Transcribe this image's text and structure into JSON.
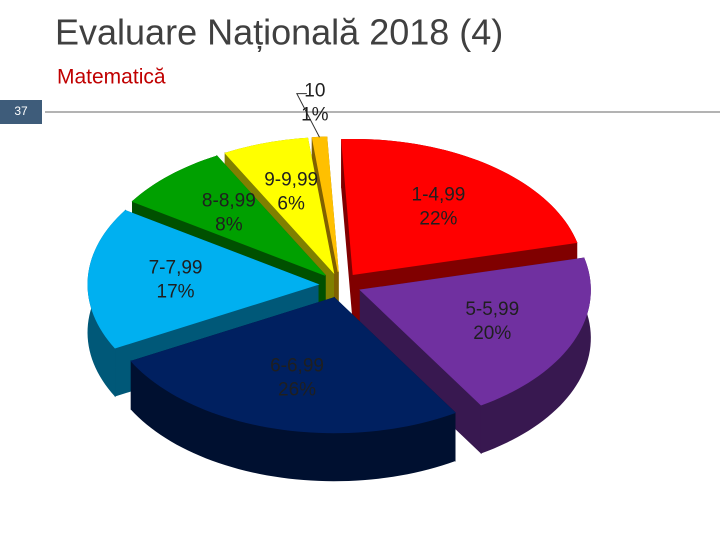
{
  "slide_number": "37",
  "chart_data": {
    "type": "pie3d",
    "title": "Evaluare Națională 2018 (4)",
    "subtitle": "Matematică",
    "categories": [
      "1-4,99",
      "5-5,99",
      "6-6,99",
      "7-7,99",
      "8-8,99",
      "9-9,99",
      "10"
    ],
    "values": [
      22,
      20,
      26,
      17,
      8,
      6,
      1
    ],
    "value_labels": [
      "22%",
      "20%",
      "26%",
      "17%",
      "8%",
      "6%",
      "1%"
    ],
    "colors": [
      "#ff0000",
      "#7030a0",
      "#002060",
      "#00b0f0",
      "#00a000",
      "#ffff00",
      "#ffc000"
    ]
  }
}
